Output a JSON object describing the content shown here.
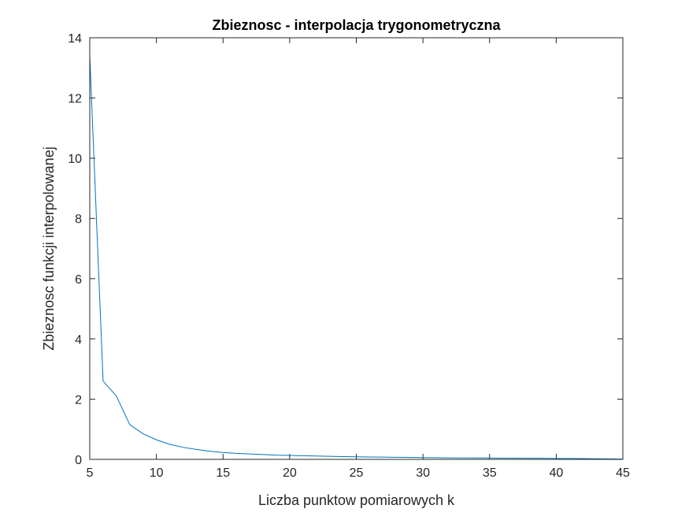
{
  "chart_data": {
    "type": "line",
    "title": "Zbieznosc - interpolacja trygonometryczna",
    "xlabel": "Liczba punktow pomiarowych k",
    "ylabel": "Zbieznosc funkcji interpolowanej",
    "xlim": [
      5,
      45
    ],
    "ylim": [
      0,
      14
    ],
    "xticks": [
      5,
      10,
      15,
      20,
      25,
      30,
      35,
      40,
      45
    ],
    "yticks": [
      0,
      2,
      4,
      6,
      8,
      10,
      12,
      14
    ],
    "grid": false,
    "box": true,
    "line_color": "#0072bd",
    "axis_color": "#262626",
    "series": [
      {
        "x": [
          5,
          6,
          7,
          8,
          9,
          10,
          11,
          12,
          13,
          14,
          15,
          16,
          17,
          18,
          19,
          20,
          21,
          22,
          23,
          24,
          25,
          26,
          27,
          28,
          29,
          30,
          31,
          32,
          33,
          34,
          35,
          36,
          37,
          38,
          39,
          40,
          41,
          42,
          43,
          44,
          45
        ],
        "y": [
          13.4,
          2.6,
          2.1,
          1.15,
          0.85,
          0.65,
          0.5,
          0.4,
          0.33,
          0.27,
          0.23,
          0.2,
          0.18,
          0.16,
          0.14,
          0.13,
          0.12,
          0.11,
          0.1,
          0.09,
          0.085,
          0.08,
          0.075,
          0.07,
          0.065,
          0.06,
          0.055,
          0.05,
          0.05,
          0.045,
          0.045,
          0.04,
          0.04,
          0.035,
          0.035,
          0.03,
          0.03,
          0.025,
          0.02,
          0.015,
          0.01
        ]
      }
    ]
  }
}
